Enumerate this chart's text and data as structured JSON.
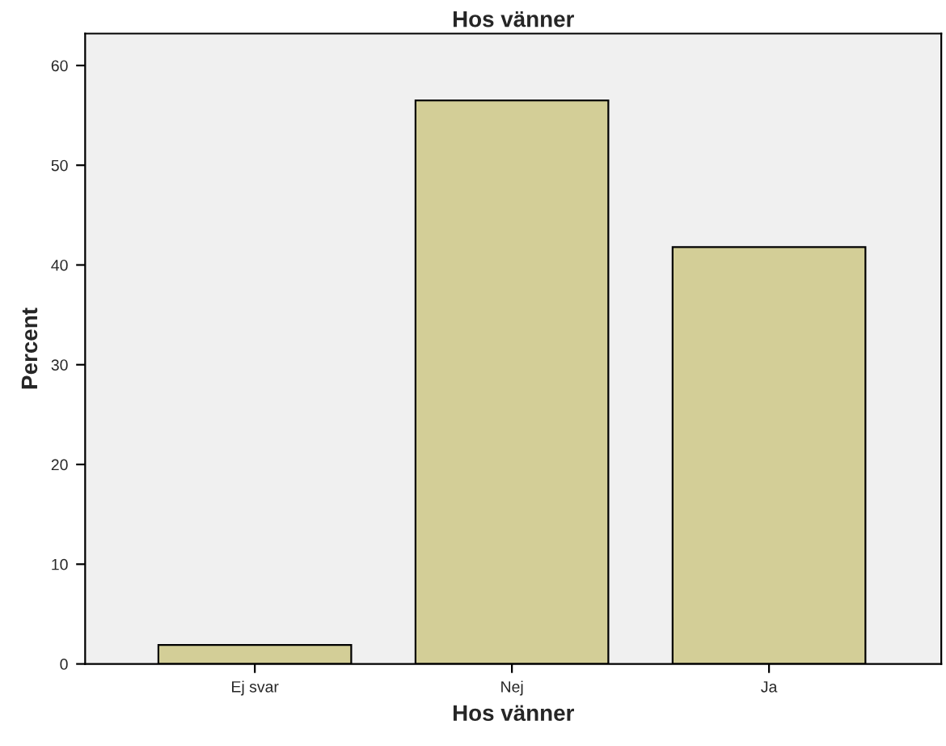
{
  "chart_data": {
    "type": "bar",
    "title": "Hos vänner",
    "xlabel": "Hos vänner",
    "ylabel": "Percent",
    "categories": [
      "Ej svar",
      "Nej",
      "Ja"
    ],
    "values": [
      1.9,
      56.5,
      41.8
    ],
    "color": "#d3ce97",
    "ylim": [
      0,
      63.2
    ],
    "yticks": [
      0,
      10,
      20,
      30,
      40,
      50,
      60
    ],
    "grid": false,
    "legend": false
  }
}
